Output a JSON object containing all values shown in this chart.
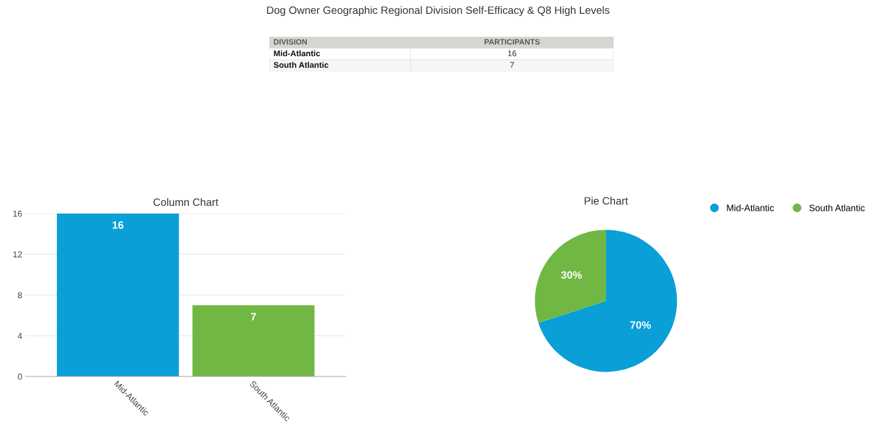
{
  "chart_data": [
    {
      "type": "other",
      "title": "Dog Owner Geographic Regional Division Self-Efficacy & Q8 High Levels",
      "annotations": [
        "DIVISION",
        "PARTICIPANTS"
      ],
      "categories": [
        "Mid-Atlantic",
        "South Atlantic"
      ],
      "values": [
        16,
        7
      ],
      "data_labels": true
    },
    {
      "type": "bar",
      "title": "Column Chart",
      "categories": [
        "Mid-Atlantic",
        "South Atlantic"
      ],
      "values": [
        16,
        7
      ],
      "colors": [
        "#0a9fd6",
        "#70b843"
      ],
      "ylim": [
        0,
        16
      ],
      "yticks": [
        0,
        4,
        8,
        12,
        16
      ],
      "grid": "y",
      "data_labels": true
    },
    {
      "type": "pie",
      "title": "Pie Chart",
      "categories": [
        "Mid-Atlantic",
        "South Atlantic"
      ],
      "values": [
        70,
        30
      ],
      "colors": [
        "#0a9fd6",
        "#70b843"
      ],
      "value_labels": [
        "70%",
        "30%"
      ],
      "legend": "top right"
    }
  ]
}
